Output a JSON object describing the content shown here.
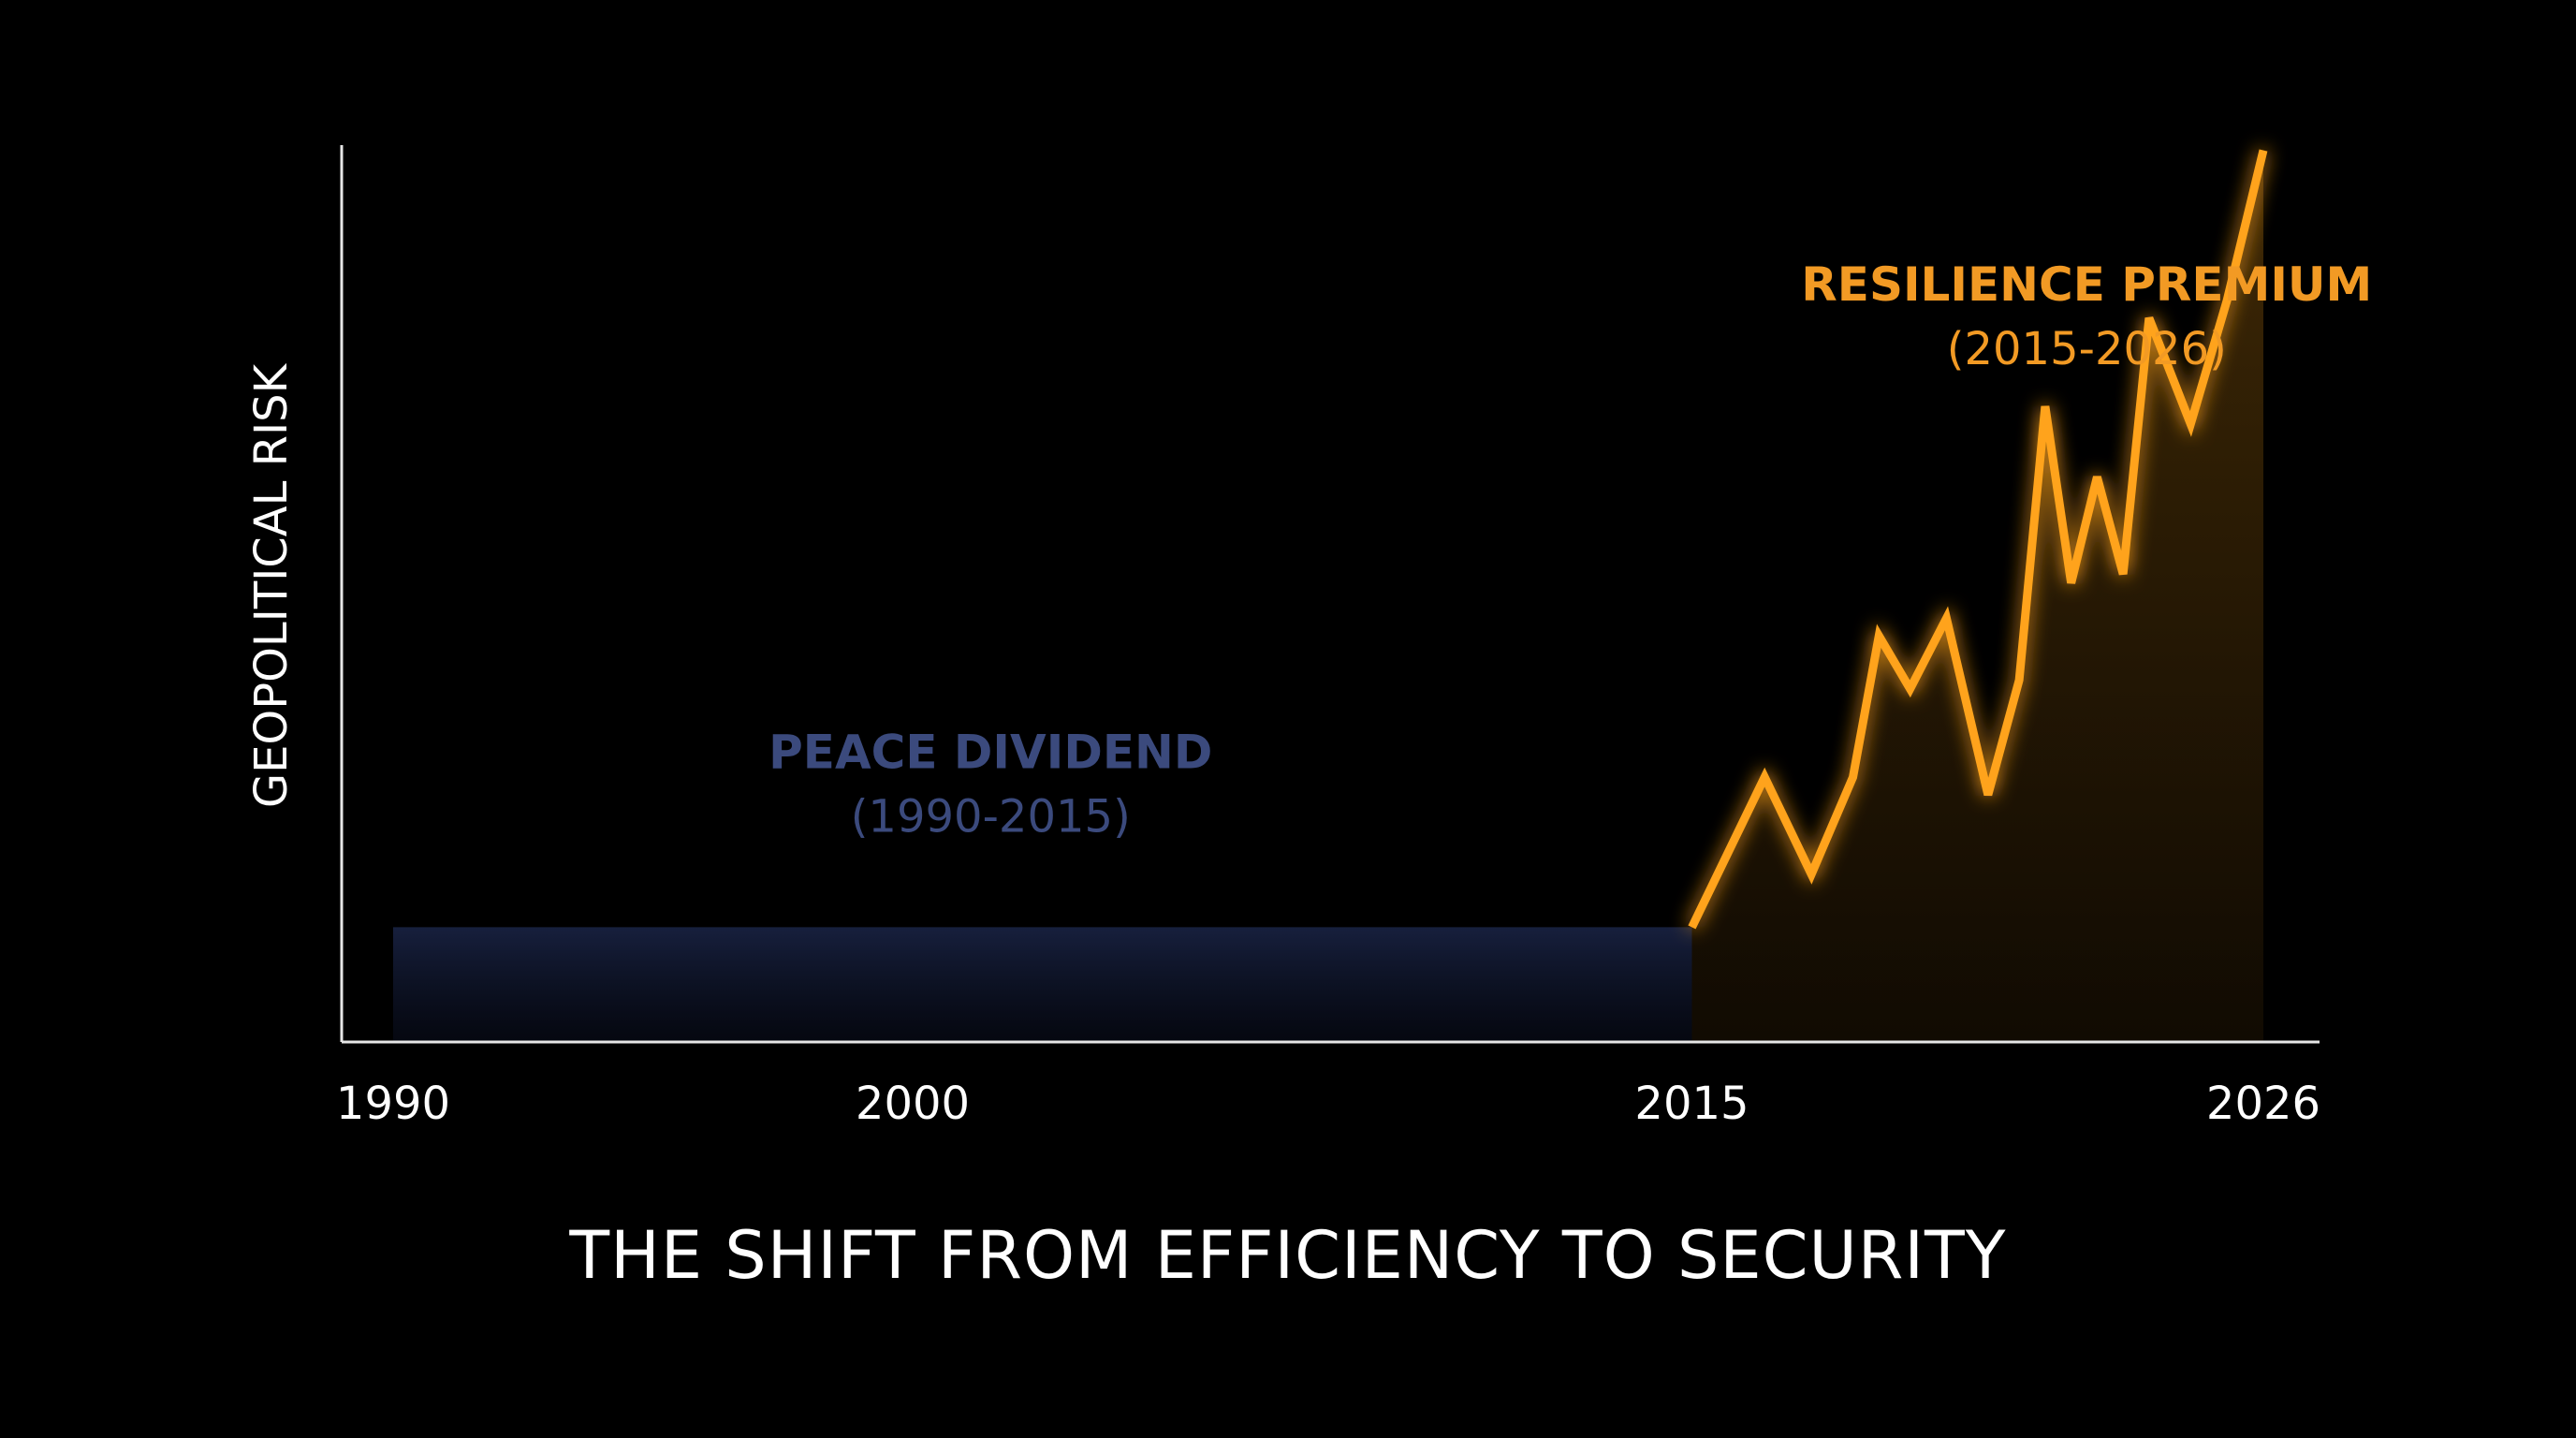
{
  "caption": "THE SHIFT FROM EFFICIENCY TO SECURITY",
  "chart_data": {
    "type": "line",
    "title": "THE SHIFT FROM EFFICIENCY TO SECURITY",
    "xlabel": "",
    "ylabel": "GEOPOLITICAL RISK",
    "x_ticks": [
      1990,
      2000,
      2015,
      2026
    ],
    "x_tick_labels": [
      "1990",
      "2000",
      "2015",
      "2026"
    ],
    "xlim": [
      1990,
      2026
    ],
    "ylim": [
      0,
      100
    ],
    "grid": false,
    "y_ticks_shown": false,
    "series": [
      {
        "name": "",
        "color": "#4a5f9b",
        "x": [
          1990,
          2015
        ],
        "y": [
          13,
          13
        ]
      },
      {
        "name": "",
        "color": "#ffa31a",
        "x": [
          2015,
          2016.4,
          2017.3,
          2018.1,
          2018.6,
          2019.2,
          2019.9,
          2020.7,
          2021.3,
          2021.8,
          2022.3,
          2022.8,
          2023.3,
          2023.8,
          2024.6,
          2025.3,
          2026
        ],
        "y": [
          13,
          30,
          19,
          30,
          46,
          40,
          48,
          28,
          41,
          72,
          52,
          64,
          53,
          82,
          70,
          84,
          101
        ]
      }
    ],
    "annotations": [
      {
        "text": "PEACE DIVIDEND",
        "subtext": "(1990-2015)",
        "color": "#3b4a7d",
        "x": 2001.5,
        "y": 31
      },
      {
        "text": "RESILIENCE PREMIUM",
        "subtext": "(2015-2026)",
        "color": "#f29a24",
        "x": 2022.6,
        "y": 84
      }
    ]
  }
}
